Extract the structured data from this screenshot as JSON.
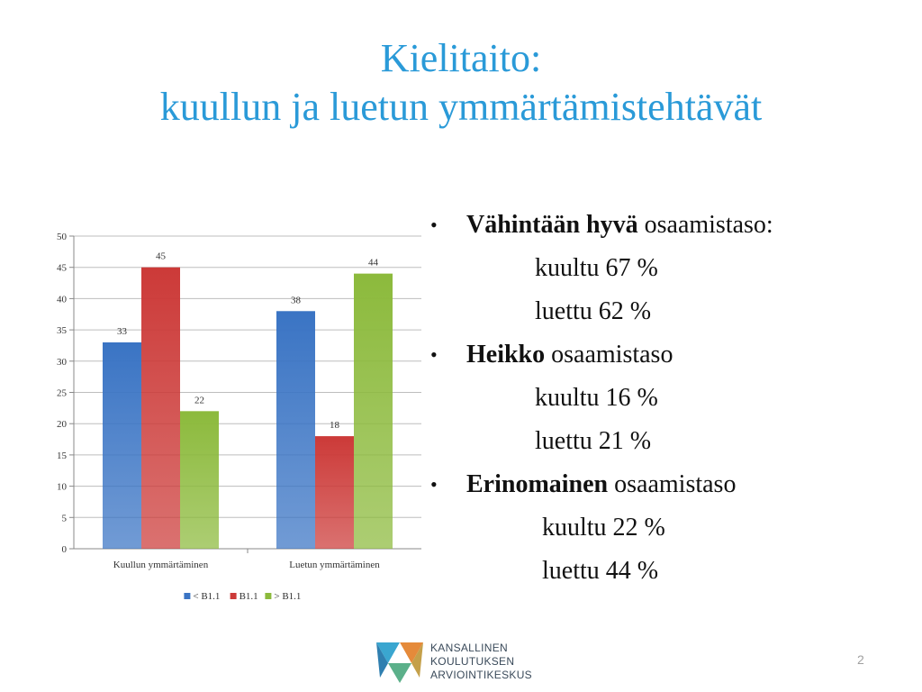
{
  "title": {
    "line1": "Kielitaito:",
    "line2": "kuullun ja luetun ymmärtämistehtävät"
  },
  "chart_data": {
    "type": "bar",
    "categories": [
      "Kuullun ymmärtäminen",
      "Luetun ymmärtäminen"
    ],
    "series": [
      {
        "name": "< B1.1",
        "values": [
          33,
          38
        ],
        "color": "#3a74c4"
      },
      {
        "name": "B1.1",
        "values": [
          45,
          18
        ],
        "color": "#cc3a38"
      },
      {
        "name": "> B1.1",
        "values": [
          22,
          44
        ],
        "color": "#8cba3c"
      }
    ],
    "ylim": [
      0,
      50
    ],
    "yticks": [
      0,
      5,
      10,
      15,
      20,
      25,
      30,
      35,
      40,
      45,
      50
    ],
    "grid": true,
    "legend": "bottom",
    "title": "",
    "xlabel": "",
    "ylabel": ""
  },
  "bullets": [
    {
      "marker": "•",
      "bold": "Vähintään hyvä",
      "rest": " osaamistaso:",
      "sub": [
        "kuultu 67 %",
        "luettu 62 %"
      ]
    },
    {
      "marker": "•",
      "bold": "Heikko",
      "rest": " osaamistaso",
      "sub": [
        "kuultu 16 %",
        "luettu 21 %"
      ]
    },
    {
      "marker": "•",
      "bold": "Erinomainen",
      "rest": " osaamistaso",
      "sub": [
        "kuultu 22 %",
        "luettu 44 %"
      ]
    }
  ],
  "logo": {
    "line1": "KANSALLINEN",
    "line2": "KOULUTUKSEN",
    "line3": "ARVIOINTIKESKUS",
    "icon": "kansallinen-koulutuksen-arviointikeskus-logo"
  },
  "page_number": "2"
}
